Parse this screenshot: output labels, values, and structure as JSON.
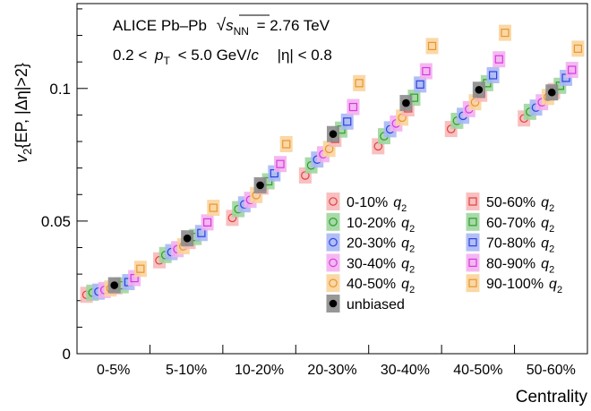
{
  "chart_data": {
    "type": "scatter",
    "header": {
      "line1_prefix": "ALICE Pb–Pb",
      "line1_sqrt": "s",
      "line1_sub": "NN",
      "line1_value": "= 2.76 TeV",
      "line2_pre": "0.2 <",
      "line2_p": "p",
      "line2_sub": "T",
      "line2_mid": "< 5.0 GeV/",
      "line2_c": "c",
      "line2_eta": "|η| < 0.8"
    },
    "ylabel": {
      "v": "v",
      "sub": "2",
      "rest": "{EP, |Δη|>2}"
    },
    "xlabel": "Centrality",
    "ylim": [
      0,
      0.132
    ],
    "y_ticks": [
      {
        "value": 0,
        "label": "0"
      },
      {
        "value": 0.05,
        "label": "0.05"
      },
      {
        "value": 0.1,
        "label": "0.1"
      }
    ],
    "categories": [
      "0-5%",
      "5-10%",
      "10-20%",
      "20-30%",
      "30-40%",
      "40-50%",
      "50-60%"
    ],
    "legend_placement": "bottom-right",
    "series": [
      {
        "name": "0-10%",
        "q": "q",
        "qsub": "2",
        "color": "#e0403c",
        "fill": "#f7b9b9",
        "marker": "circle",
        "values": [
          0.0222,
          0.0352,
          0.0512,
          0.0672,
          0.0782,
          0.0847,
          0.0887
        ]
      },
      {
        "name": "10-20%",
        "q": "q",
        "qsub": "2",
        "color": "#2e9e2e",
        "fill": "#9fd69f",
        "marker": "circle",
        "values": [
          0.023,
          0.0372,
          0.0545,
          0.071,
          0.082,
          0.0878,
          0.0912
        ]
      },
      {
        "name": "20-30%",
        "q": "q",
        "qsub": "2",
        "color": "#3040e0",
        "fill": "#a9b8f5",
        "marker": "circle",
        "values": [
          0.0234,
          0.0383,
          0.0563,
          0.0732,
          0.0846,
          0.0897,
          0.0928
        ]
      },
      {
        "name": "30-40%",
        "q": "q",
        "qsub": "2",
        "color": "#d838e0",
        "fill": "#f3b0f0",
        "marker": "circle",
        "values": [
          0.024,
          0.0394,
          0.058,
          0.0752,
          0.0868,
          0.0922,
          0.0948
        ]
      },
      {
        "name": "40-50%",
        "q": "q",
        "qsub": "2",
        "color": "#e89630",
        "fill": "#f9d49c",
        "marker": "circle",
        "values": [
          0.0246,
          0.0405,
          0.0598,
          0.0772,
          0.089,
          0.0948,
          0.0968
        ]
      },
      {
        "name": "50-60%",
        "q": "q",
        "qsub": "2",
        "color": "#e0403c",
        "fill": "#f7b9b9",
        "marker": "square",
        "values": [
          0.0254,
          0.0425,
          0.063,
          0.081,
          0.0925,
          0.098,
          0.099
        ]
      },
      {
        "name": "60-70%",
        "q": "q",
        "qsub": "2",
        "color": "#2e9e2e",
        "fill": "#9fd69f",
        "marker": "square",
        "values": [
          0.0258,
          0.044,
          0.065,
          0.0845,
          0.0965,
          0.102,
          0.101
        ]
      },
      {
        "name": "70-80%",
        "q": "q",
        "qsub": "2",
        "color": "#3040e0",
        "fill": "#a9b8f5",
        "marker": "square",
        "values": [
          0.027,
          0.0455,
          0.068,
          0.0875,
          0.1015,
          0.105,
          0.104
        ]
      },
      {
        "name": "80-90%",
        "q": "q",
        "qsub": "2",
        "color": "#d838e0",
        "fill": "#f3b0f0",
        "marker": "square",
        "values": [
          0.0285,
          0.0495,
          0.0715,
          0.093,
          0.1065,
          0.111,
          0.107
        ]
      },
      {
        "name": "90-100%",
        "q": "q",
        "qsub": "2",
        "color": "#e89630",
        "fill": "#f9d49c",
        "marker": "square",
        "values": [
          0.032,
          0.055,
          0.079,
          0.102,
          0.116,
          0.121,
          0.115
        ]
      },
      {
        "name": "unbiased",
        "color": "#000000",
        "fill": "#8c8c8c",
        "marker": "dot",
        "values": [
          0.0258,
          0.0435,
          0.0635,
          0.0828,
          0.0945,
          0.0995,
          0.0985
        ]
      }
    ]
  }
}
